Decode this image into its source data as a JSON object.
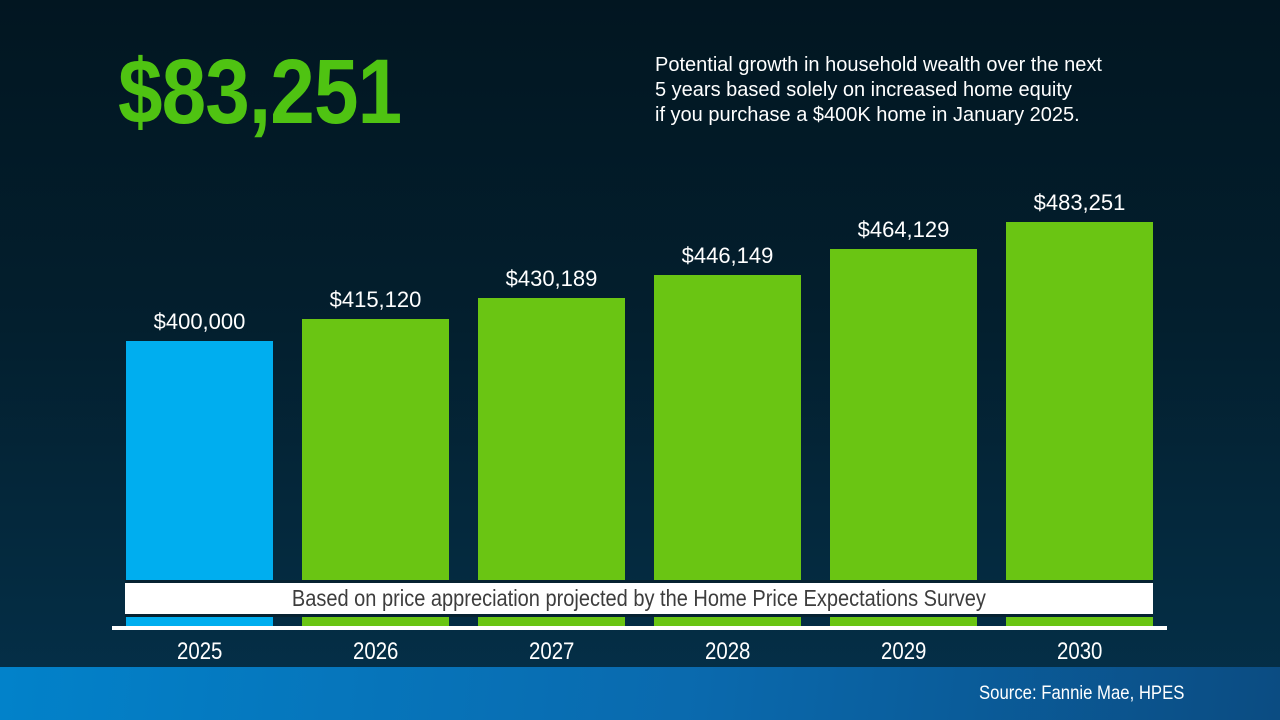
{
  "headline": {
    "amount": "$83,251",
    "description": "Potential growth in household wealth over the next\n5 years based solely on increased home equity\nif you purchase a $400K home in January 2025."
  },
  "chart_data": {
    "type": "bar",
    "title": "",
    "xlabel": "",
    "ylabel": "",
    "categories": [
      "2025",
      "2026",
      "2027",
      "2028",
      "2029",
      "2030"
    ],
    "values": [
      400000,
      415120,
      430189,
      446149,
      464129,
      483251
    ],
    "value_labels": [
      "$400,000",
      "$415,120",
      "$430,189",
      "$446,149",
      "$464,129",
      "$483,251"
    ],
    "bar_colors": [
      "#00aeef",
      "#6ac513",
      "#6ac513",
      "#6ac513",
      "#6ac513",
      "#6ac513"
    ],
    "ylim": [
      200000,
      483251
    ],
    "grid": false,
    "legend": false,
    "banner": "Based on price appreciation projected by the Home Price Expectations Survey"
  },
  "footer": {
    "source": "Source: Fannie Mae, HPES"
  },
  "colors": {
    "headline_green": "#4fc312",
    "bar_green": "#6ac513",
    "bar_blue": "#00aeef",
    "background_top": "#021621",
    "background_bottom": "#05304a",
    "footer_blue_left": "#0282ca",
    "footer_blue_right": "#0b4c82",
    "banner_background": "#ffffff",
    "banner_text": "#3d3d3d",
    "label_text": "#ffffff"
  }
}
